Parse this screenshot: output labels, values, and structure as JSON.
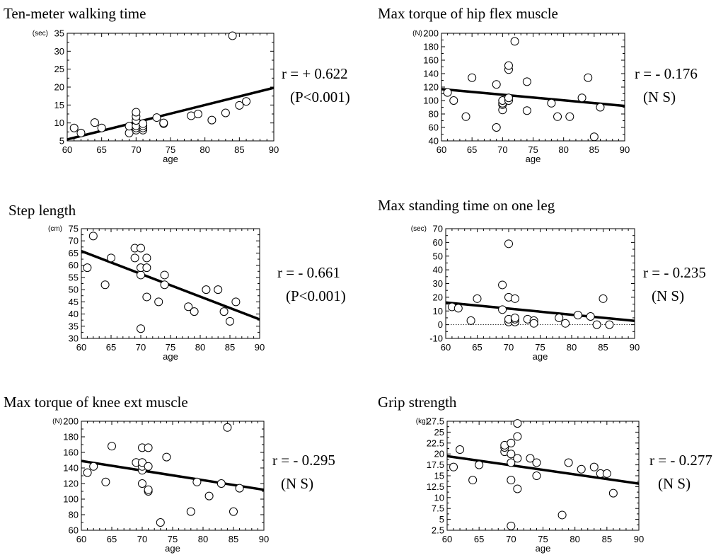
{
  "chart_data": [
    {
      "type": "scatter",
      "title": "Ten-meter walking time",
      "ylabel": "(sec)",
      "xlabel": "age",
      "xlim": [
        60,
        90
      ],
      "ylim": [
        5,
        35
      ],
      "xticks": [
        "60",
        "65",
        "70",
        "75",
        "80",
        "85",
        "90"
      ],
      "yticks": [
        "5",
        "10",
        "15",
        "20",
        "25",
        "30",
        "35"
      ],
      "stat_r": "r = + 0.622",
      "stat_p": "(P<0.001)",
      "regression": {
        "x": [
          60,
          90
        ],
        "y": [
          5.4,
          19.8
        ]
      },
      "points": [
        [
          61,
          8.6
        ],
        [
          62,
          7.2
        ],
        [
          64,
          10.1
        ],
        [
          65,
          8.6
        ],
        [
          69,
          7.2
        ],
        [
          69,
          9.1
        ],
        [
          70,
          8.0
        ],
        [
          70,
          8.6
        ],
        [
          70,
          9.2
        ],
        [
          70,
          10.7
        ],
        [
          70,
          11.8
        ],
        [
          70,
          13.0
        ],
        [
          71,
          8.0
        ],
        [
          71,
          8.6
        ],
        [
          71,
          9.2
        ],
        [
          71,
          9.8
        ],
        [
          73,
          11.5
        ],
        [
          74,
          9.8
        ],
        [
          74,
          10.0
        ],
        [
          78,
          12.0
        ],
        [
          79,
          12.5
        ],
        [
          81,
          10.8
        ],
        [
          83,
          12.8
        ],
        [
          84,
          34.3
        ],
        [
          85,
          14.9
        ],
        [
          86,
          16.0
        ]
      ]
    },
    {
      "type": "scatter",
      "title": "Max torque of hip flex muscle",
      "ylabel": "(N)",
      "xlabel": "age",
      "xlim": [
        60,
        90
      ],
      "ylim": [
        40,
        200
      ],
      "xticks": [
        "60",
        "65",
        "70",
        "75",
        "80",
        "85",
        "90"
      ],
      "yticks": [
        "40",
        "60",
        "80",
        "100",
        "120",
        "140",
        "160",
        "180",
        "200"
      ],
      "stat_r": "r = - 0.176",
      "stat_p": "(N S)",
      "regression": {
        "x": [
          60,
          90
        ],
        "y": [
          117,
          92
        ]
      },
      "points": [
        [
          61,
          112
        ],
        [
          62,
          100
        ],
        [
          64,
          76
        ],
        [
          65,
          134
        ],
        [
          69,
          60
        ],
        [
          69,
          124
        ],
        [
          70,
          86
        ],
        [
          70,
          94
        ],
        [
          70,
          96
        ],
        [
          70,
          100
        ],
        [
          71,
          100
        ],
        [
          71,
          104
        ],
        [
          71,
          146
        ],
        [
          71,
          152
        ],
        [
          72,
          188
        ],
        [
          74,
          85
        ],
        [
          74,
          128
        ],
        [
          78,
          96
        ],
        [
          79,
          76
        ],
        [
          81,
          76
        ],
        [
          83,
          104
        ],
        [
          84,
          134
        ],
        [
          85,
          46
        ],
        [
          86,
          90
        ]
      ]
    },
    {
      "type": "scatter",
      "title": "Step length",
      "ylabel": "(cm)",
      "xlabel": "age",
      "xlim": [
        60,
        90
      ],
      "ylim": [
        30,
        75
      ],
      "xticks": [
        "60",
        "65",
        "70",
        "75",
        "80",
        "85",
        "90"
      ],
      "yticks": [
        "30",
        "35",
        "40",
        "45",
        "50",
        "55",
        "60",
        "65",
        "70",
        "75"
      ],
      "stat_r": "r = -  0.661",
      "stat_p": "(P<0.001)",
      "regression": {
        "x": [
          60,
          90
        ],
        "y": [
          65.8,
          37.8
        ]
      },
      "points": [
        [
          61,
          59
        ],
        [
          62,
          72
        ],
        [
          64,
          52
        ],
        [
          65,
          63
        ],
        [
          69,
          63
        ],
        [
          69,
          67
        ],
        [
          70,
          34
        ],
        [
          70,
          56
        ],
        [
          70,
          59
        ],
        [
          70,
          67
        ],
        [
          71,
          47
        ],
        [
          71,
          59
        ],
        [
          71,
          63
        ],
        [
          73,
          45
        ],
        [
          74,
          52
        ],
        [
          74,
          56
        ],
        [
          78,
          43
        ],
        [
          79,
          41
        ],
        [
          81,
          50
        ],
        [
          83,
          50
        ],
        [
          84,
          41
        ],
        [
          85,
          37
        ],
        [
          86,
          45
        ]
      ]
    },
    {
      "type": "scatter",
      "title": "Max standing time on one leg",
      "ylabel": "(sec)",
      "xlabel": "age",
      "xlim": [
        60,
        90
      ],
      "ylim": [
        -10,
        70
      ],
      "xticks": [
        "60",
        "65",
        "70",
        "75",
        "80",
        "85",
        "90"
      ],
      "yticks": [
        "-10",
        "0",
        "10",
        "20",
        "30",
        "40",
        "50",
        "60",
        "70"
      ],
      "stat_r": "r = - 0.235",
      "stat_p": "(N S)",
      "regression": {
        "x": [
          60,
          90
        ],
        "y": [
          16.2,
          2.8
        ]
      },
      "points": [
        [
          61,
          13
        ],
        [
          62,
          12
        ],
        [
          64,
          3
        ],
        [
          65,
          19
        ],
        [
          69,
          29
        ],
        [
          69,
          11
        ],
        [
          70,
          59
        ],
        [
          70,
          20
        ],
        [
          70,
          2
        ],
        [
          70,
          4
        ],
        [
          71,
          19
        ],
        [
          71,
          2
        ],
        [
          71,
          4
        ],
        [
          71,
          5
        ],
        [
          73,
          4
        ],
        [
          74,
          3
        ],
        [
          74,
          1
        ],
        [
          78,
          5
        ],
        [
          79,
          1
        ],
        [
          81,
          7
        ],
        [
          83,
          6
        ],
        [
          84,
          0
        ],
        [
          85,
          19
        ],
        [
          86,
          0
        ]
      ]
    },
    {
      "type": "scatter",
      "title": "Max torque of knee ext muscle",
      "ylabel": "(N)",
      "xlabel": "age",
      "xlim": [
        60,
        90
      ],
      "ylim": [
        60,
        200
      ],
      "xticks": [
        "60",
        "65",
        "70",
        "75",
        "80",
        "85",
        "90"
      ],
      "yticks": [
        "60",
        "80",
        "100",
        "120",
        "140",
        "160",
        "180",
        "200"
      ],
      "stat_r": "r = - 0.295",
      "stat_p": "(N S)",
      "regression": {
        "x": [
          60,
          90
        ],
        "y": [
          149,
          112
        ]
      },
      "points": [
        [
          61,
          134
        ],
        [
          62,
          142
        ],
        [
          64,
          122
        ],
        [
          65,
          168
        ],
        [
          69,
          147
        ],
        [
          70,
          120
        ],
        [
          70,
          137
        ],
        [
          70,
          142
        ],
        [
          70,
          147
        ],
        [
          70,
          166
        ],
        [
          71,
          110
        ],
        [
          71,
          112
        ],
        [
          71,
          142
        ],
        [
          71,
          166
        ],
        [
          73,
          70
        ],
        [
          74,
          154
        ],
        [
          78,
          84
        ],
        [
          79,
          122
        ],
        [
          81,
          104
        ],
        [
          83,
          120
        ],
        [
          84,
          192
        ],
        [
          85,
          84
        ],
        [
          86,
          114
        ]
      ]
    },
    {
      "type": "scatter",
      "title": "Grip strength",
      "ylabel": "(kg)",
      "xlabel": "age",
      "xlim": [
        60,
        90
      ],
      "ylim": [
        2.5,
        27.5
      ],
      "xticks": [
        "60",
        "65",
        "70",
        "75",
        "80",
        "85",
        "90"
      ],
      "yticks": [
        "2.5",
        "5",
        "7.5",
        "10",
        "12.5",
        "15",
        "17.5",
        "20",
        "22.5",
        "25",
        "27.5"
      ],
      "stat_r": "r = - 0.277",
      "stat_p": "(N S)",
      "regression": {
        "x": [
          60,
          90
        ],
        "y": [
          19.5,
          13.2
        ]
      },
      "points": [
        [
          61,
          17
        ],
        [
          62,
          21
        ],
        [
          64,
          14
        ],
        [
          65,
          17.5
        ],
        [
          69,
          20.5
        ],
        [
          69,
          21.5
        ],
        [
          69,
          22
        ],
        [
          70,
          3.5
        ],
        [
          70,
          14
        ],
        [
          70,
          18
        ],
        [
          70,
          20
        ],
        [
          70,
          22.5
        ],
        [
          71,
          12
        ],
        [
          71,
          19
        ],
        [
          71,
          24
        ],
        [
          71,
          27
        ],
        [
          73,
          19
        ],
        [
          74,
          15
        ],
        [
          74,
          18
        ],
        [
          78,
          6
        ],
        [
          79,
          18
        ],
        [
          81,
          16.5
        ],
        [
          83,
          17
        ],
        [
          84,
          15.5
        ],
        [
          85,
          15.5
        ],
        [
          86,
          11
        ]
      ]
    }
  ]
}
